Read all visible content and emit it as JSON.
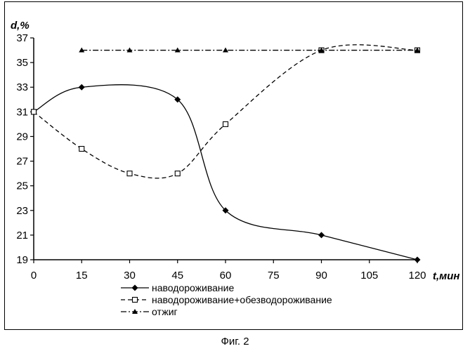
{
  "caption": "Фиг. 2",
  "chart_data": {
    "type": "line",
    "ylabel": "d,%",
    "xlabel": "t,мин",
    "xlim": [
      0,
      120
    ],
    "ylim": [
      19,
      37
    ],
    "x_ticks": [
      0,
      15,
      30,
      45,
      60,
      75,
      90,
      105,
      120
    ],
    "y_ticks": [
      19,
      21,
      23,
      25,
      27,
      29,
      31,
      33,
      35,
      37
    ],
    "grid": false,
    "legend_position": "bottom",
    "series": [
      {
        "name": "наводороживание",
        "line_style": "solid",
        "marker": "diamond-filled",
        "points": [
          [
            0,
            31
          ],
          [
            15,
            33
          ],
          [
            45,
            32
          ],
          [
            60,
            23
          ],
          [
            90,
            21
          ],
          [
            120,
            19
          ]
        ]
      },
      {
        "name": "наводороживание+обезводороживание",
        "line_style": "dashed",
        "marker": "square-open",
        "points": [
          [
            0,
            31
          ],
          [
            15,
            28
          ],
          [
            30,
            26
          ],
          [
            45,
            26
          ],
          [
            60,
            30
          ],
          [
            90,
            36
          ],
          [
            120,
            36
          ]
        ]
      },
      {
        "name": "отжиг",
        "line_style": "dash-dot",
        "marker": "triangle-filled",
        "points": [
          [
            15,
            36
          ],
          [
            30,
            36
          ],
          [
            45,
            36
          ],
          [
            60,
            36
          ],
          [
            90,
            36
          ],
          [
            120,
            36
          ]
        ]
      }
    ]
  }
}
